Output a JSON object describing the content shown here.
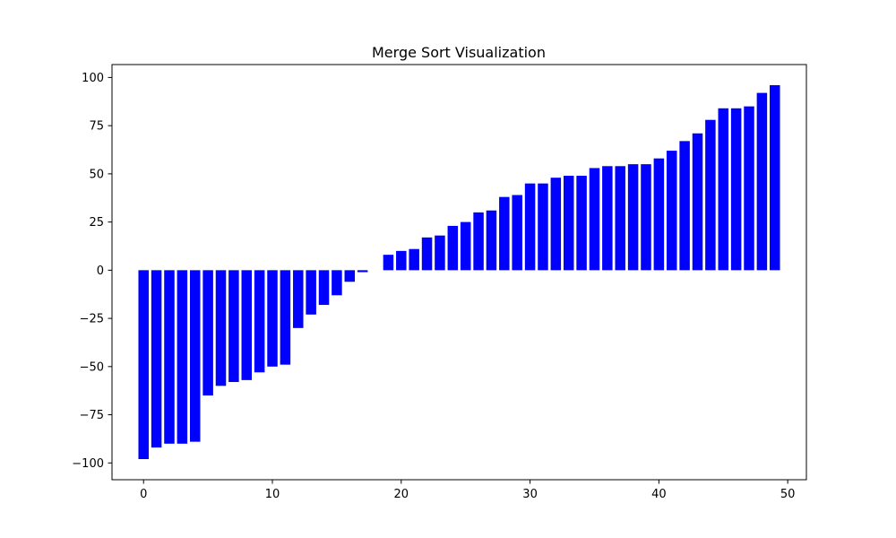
{
  "chart_data": {
    "type": "bar",
    "title": "Merge Sort Visualization",
    "xlabel": "",
    "ylabel": "",
    "xlim": [
      -2.45,
      51.45
    ],
    "ylim": [
      -108.7,
      106.7
    ],
    "x_ticks": [
      0,
      10,
      20,
      30,
      40,
      50
    ],
    "y_ticks": [
      -100,
      -75,
      -50,
      -25,
      0,
      25,
      50,
      75,
      100
    ],
    "grid": false,
    "bar_color": "#0000ff",
    "x": [
      0,
      1,
      2,
      3,
      4,
      5,
      6,
      7,
      8,
      9,
      10,
      11,
      12,
      13,
      14,
      15,
      16,
      17,
      18,
      19,
      20,
      21,
      22,
      23,
      24,
      25,
      26,
      27,
      28,
      29,
      30,
      31,
      32,
      33,
      34,
      35,
      36,
      37,
      38,
      39,
      40,
      41,
      42,
      43,
      44,
      45,
      46,
      47,
      48,
      49
    ],
    "values": [
      -98,
      -92,
      -90,
      -90,
      -89,
      -65,
      -60,
      -58,
      -57,
      -53,
      -50,
      -49,
      -30,
      -23,
      -18,
      -13,
      -6,
      -1,
      0,
      8,
      10,
      11,
      17,
      18,
      23,
      25,
      30,
      31,
      38,
      39,
      45,
      45,
      48,
      49,
      49,
      53,
      54,
      54,
      55,
      55,
      58,
      62,
      67,
      71,
      78,
      84,
      84,
      85,
      92,
      96
    ]
  }
}
